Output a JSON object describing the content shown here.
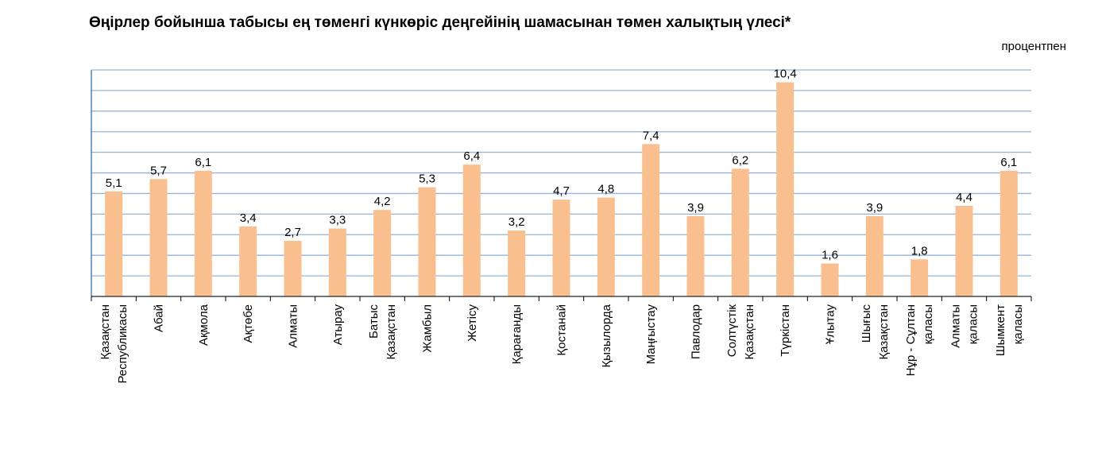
{
  "chart_data": {
    "type": "bar",
    "title": "Өңірлер бойынша табысы ең төменгі күнкөріс деңгейінің шамасынан төмен халықтың үлесі*",
    "unit": "процентпен",
    "xlabel": "",
    "ylabel": "",
    "ylim": [
      0,
      11
    ],
    "grid": true,
    "legend": "none",
    "bar_color": "#F9BF8F",
    "axis_color": "#4F81BD",
    "grid_color": "#95B3D7",
    "categories": [
      [
        "Қазақстан",
        "Республикасы"
      ],
      [
        "Абай"
      ],
      [
        "Ақмола"
      ],
      [
        "Ақтөбе"
      ],
      [
        "Алматы"
      ],
      [
        "Атырау"
      ],
      [
        "Батыс",
        "Қазақстан"
      ],
      [
        "Жамбыл"
      ],
      [
        "Жетісу"
      ],
      [
        "Қарағанды"
      ],
      [
        "Қостанай"
      ],
      [
        "Қызылорда"
      ],
      [
        "Маңғыстау"
      ],
      [
        "Павлодар"
      ],
      [
        "Солтүстік",
        "Қазақстан"
      ],
      [
        "Түркістан"
      ],
      [
        "Ұлытау"
      ],
      [
        "Шығыс",
        "Қазақстан"
      ],
      [
        "Нұр - Сұлтан",
        "қаласы"
      ],
      [
        "Алматы",
        "қаласы"
      ],
      [
        "Шымкент",
        "қаласы"
      ]
    ],
    "values": [
      5.1,
      5.7,
      6.1,
      3.4,
      2.7,
      3.3,
      4.2,
      5.3,
      6.4,
      3.2,
      4.7,
      4.8,
      7.4,
      3.9,
      6.2,
      10.4,
      1.6,
      3.9,
      1.8,
      4.4,
      6.1
    ],
    "value_labels": [
      "5,1",
      "5,7",
      "6,1",
      "3,4",
      "2,7",
      "3,3",
      "4,2",
      "5,3",
      "6,4",
      "3,2",
      "4,7",
      "4,8",
      "7,4",
      "3,9",
      "6,2",
      "10,4",
      "1,6",
      "3,9",
      "1,8",
      "4,4",
      "6,1"
    ]
  }
}
